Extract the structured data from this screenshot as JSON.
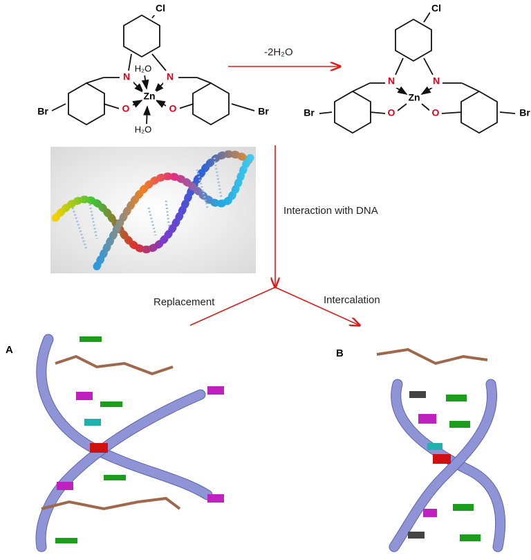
{
  "reaction": {
    "label": "-2H₂O"
  },
  "left_complex": {
    "labels": [
      "Cl",
      "N",
      "N",
      "H₂O",
      "Zn",
      "O",
      "O",
      "H₂O",
      "Br",
      "Br"
    ]
  },
  "right_complex": {
    "labels": [
      "Cl",
      "N",
      "N",
      "Zn",
      "O",
      "O",
      "Br",
      "Br"
    ]
  },
  "flow": {
    "interaction": "Interaction with DNA",
    "replacement": "Replacement",
    "intercalation": "Intercalation"
  },
  "panels": [
    "A",
    "B"
  ]
}
